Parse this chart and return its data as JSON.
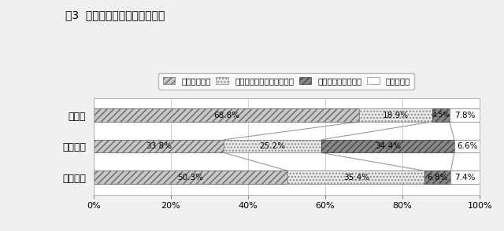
{
  "title": "図3  学科別進路状況（全日制）",
  "categories": [
    "普通科",
    "専門学科",
    "総合学科"
  ],
  "legend_labels": [
    "大学等進学者",
    "専修学校等進学者・入学者",
    "就職者（就職のみ）",
    "その他の者"
  ],
  "values": [
    [
      68.8,
      18.9,
      4.5,
      7.8
    ],
    [
      33.8,
      25.2,
      34.4,
      6.6
    ],
    [
      50.3,
      35.4,
      6.8,
      7.4
    ]
  ],
  "value_labels": [
    [
      "68.8%",
      "18.9%",
      "4.5%",
      "7.8%"
    ],
    [
      "33.8%",
      "25.2%",
      "34.4%",
      "6.6%"
    ],
    [
      "50.3%",
      "35.4%",
      "6.8%",
      "7.4%"
    ]
  ],
  "seg_colors": [
    "#c8c8c8",
    "#e8e8e8",
    "#888888",
    "#ffffff"
  ],
  "seg_hatches": [
    "////",
    "....",
    "////",
    ""
  ],
  "seg_edgecolors": [
    "#666666",
    "#888888",
    "#444444",
    "#888888"
  ],
  "xticks": [
    0,
    20,
    40,
    60,
    80,
    100
  ],
  "xtick_labels": [
    "0%",
    "20%",
    "40%",
    "60%",
    "80%",
    "100%"
  ],
  "bg_color": "#f0f0f0",
  "plot_bg": "#ffffff",
  "figsize": [
    6.4,
    2.94
  ],
  "dpi": 100,
  "bar_height": 0.42
}
